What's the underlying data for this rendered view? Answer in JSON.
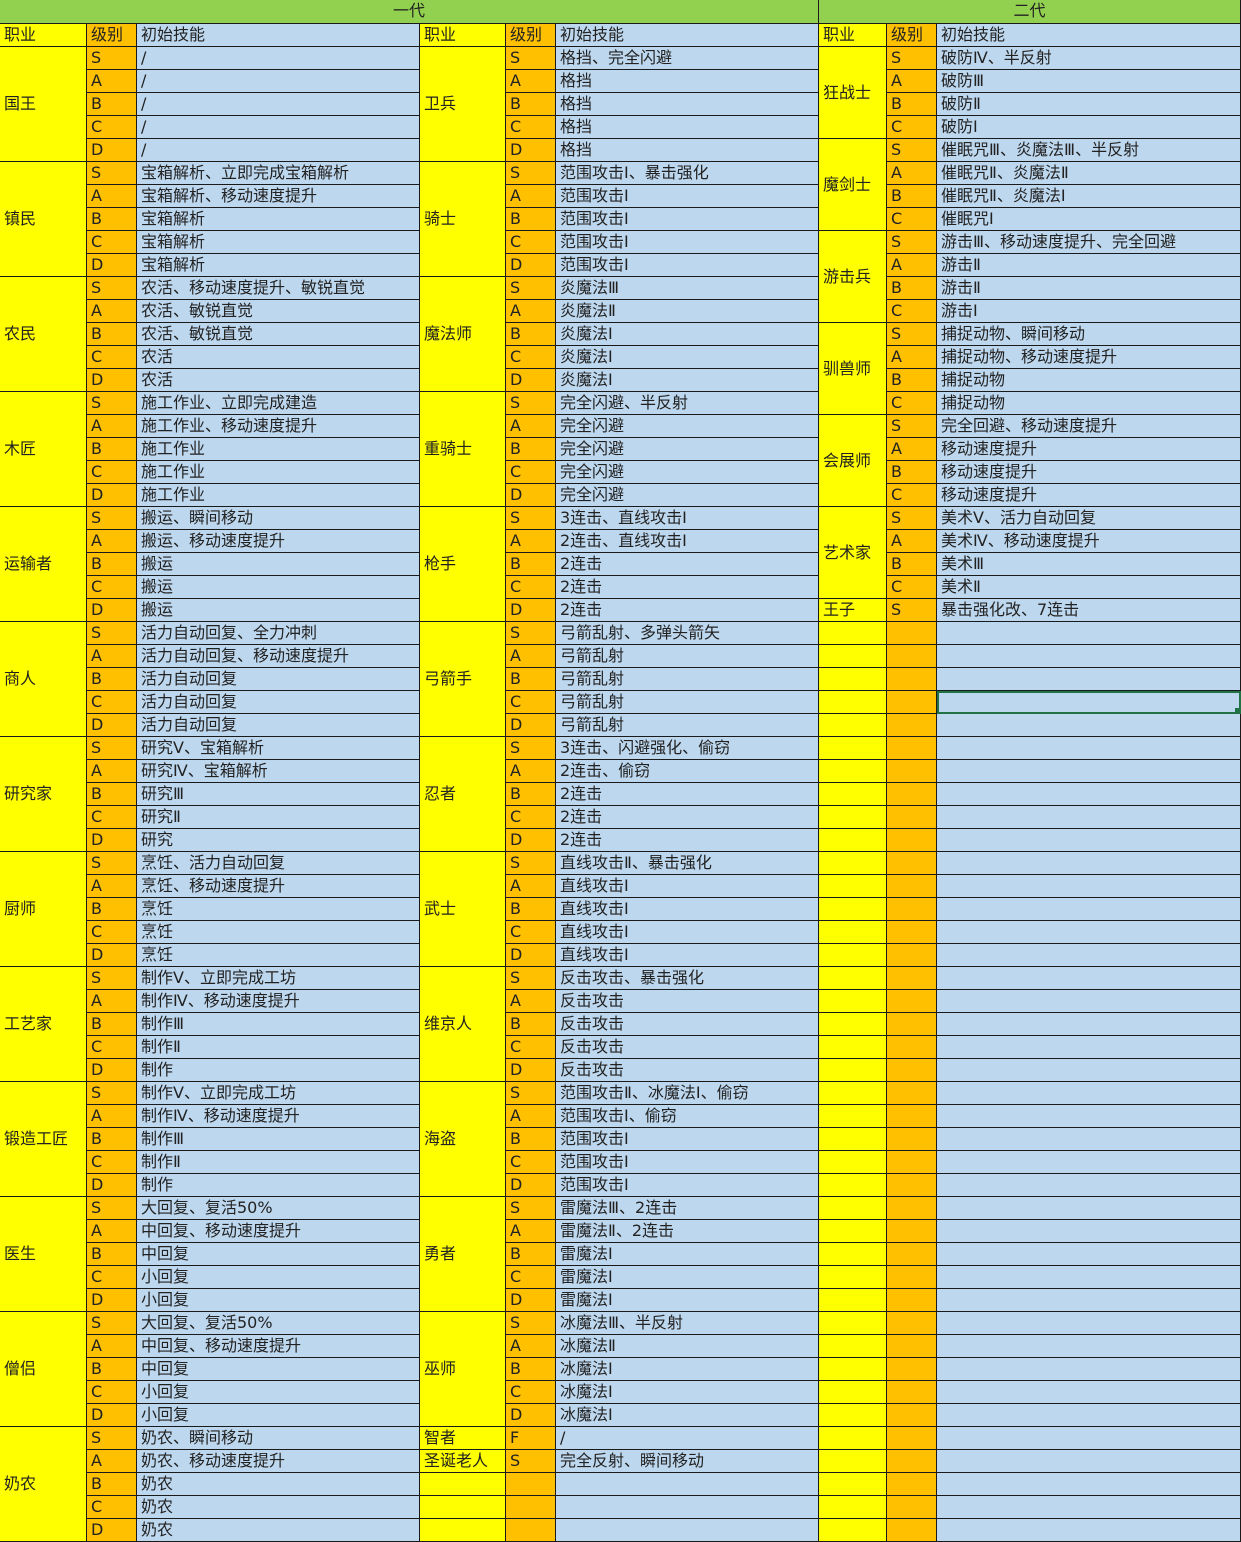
{
  "headers": {
    "gen1_title": "一代",
    "gen2_title": "二代",
    "col_class": "职业",
    "col_level": "级别",
    "col_skill": "初始技能"
  },
  "colors": {
    "title": "#92D050",
    "class": "#FFFF00",
    "level": "#FFC000",
    "skill": "#BDD7EE",
    "selection": "#217346"
  },
  "selected_cell": {
    "section": "gen2",
    "row": 29,
    "column": "初始技能"
  },
  "gen1_left": [
    {
      "name": "国王",
      "rows": [
        [
          "S",
          "/"
        ],
        [
          "A",
          "/"
        ],
        [
          "B",
          "/"
        ],
        [
          "C",
          "/"
        ],
        [
          "D",
          "/"
        ]
      ]
    },
    {
      "name": "镇民",
      "rows": [
        [
          "S",
          "宝箱解析、立即完成宝箱解析"
        ],
        [
          "A",
          "宝箱解析、移动速度提升"
        ],
        [
          "B",
          "宝箱解析"
        ],
        [
          "C",
          "宝箱解析"
        ],
        [
          "D",
          "宝箱解析"
        ]
      ]
    },
    {
      "name": "农民",
      "rows": [
        [
          "S",
          "农活、移动速度提升、敏锐直觉"
        ],
        [
          "A",
          "农活、敏锐直觉"
        ],
        [
          "B",
          "农活、敏锐直觉"
        ],
        [
          "C",
          "农活"
        ],
        [
          "D",
          "农活"
        ]
      ]
    },
    {
      "name": "木匠",
      "rows": [
        [
          "S",
          "施工作业、立即完成建造"
        ],
        [
          "A",
          "施工作业、移动速度提升"
        ],
        [
          "B",
          "施工作业"
        ],
        [
          "C",
          "施工作业"
        ],
        [
          "D",
          "施工作业"
        ]
      ]
    },
    {
      "name": "运输者",
      "rows": [
        [
          "S",
          "搬运、瞬间移动"
        ],
        [
          "A",
          "搬运、移动速度提升"
        ],
        [
          "B",
          "搬运"
        ],
        [
          "C",
          "搬运"
        ],
        [
          "D",
          "搬运"
        ]
      ]
    },
    {
      "name": "商人",
      "rows": [
        [
          "S",
          "活力自动回复、全力冲刺"
        ],
        [
          "A",
          "活力自动回复、移动速度提升"
        ],
        [
          "B",
          "活力自动回复"
        ],
        [
          "C",
          "活力自动回复"
        ],
        [
          "D",
          "活力自动回复"
        ]
      ]
    },
    {
      "name": "研究家",
      "rows": [
        [
          "S",
          "研究Ⅴ、宝箱解析"
        ],
        [
          "A",
          "研究Ⅳ、宝箱解析"
        ],
        [
          "B",
          "研究Ⅲ"
        ],
        [
          "C",
          "研究Ⅱ"
        ],
        [
          "D",
          "研究"
        ]
      ]
    },
    {
      "name": "厨师",
      "rows": [
        [
          "S",
          "烹饪、活力自动回复"
        ],
        [
          "A",
          "烹饪、移动速度提升"
        ],
        [
          "B",
          "烹饪"
        ],
        [
          "C",
          "烹饪"
        ],
        [
          "D",
          "烹饪"
        ]
      ]
    },
    {
      "name": "工艺家",
      "rows": [
        [
          "S",
          "制作Ⅴ、立即完成工坊"
        ],
        [
          "A",
          "制作Ⅳ、移动速度提升"
        ],
        [
          "B",
          "制作Ⅲ"
        ],
        [
          "C",
          "制作Ⅱ"
        ],
        [
          "D",
          "制作"
        ]
      ]
    },
    {
      "name": "锻造工匠",
      "rows": [
        [
          "S",
          "制作Ⅴ、立即完成工坊"
        ],
        [
          "A",
          "制作Ⅳ、移动速度提升"
        ],
        [
          "B",
          "制作Ⅲ"
        ],
        [
          "C",
          "制作Ⅱ"
        ],
        [
          "D",
          "制作"
        ]
      ]
    },
    {
      "name": "医生",
      "rows": [
        [
          "S",
          "大回复、复活50%"
        ],
        [
          "A",
          "中回复、移动速度提升"
        ],
        [
          "B",
          "中回复"
        ],
        [
          "C",
          "小回复"
        ],
        [
          "D",
          "小回复"
        ]
      ]
    },
    {
      "name": "僧侣",
      "rows": [
        [
          "S",
          "大回复、复活50%"
        ],
        [
          "A",
          "中回复、移动速度提升"
        ],
        [
          "B",
          "中回复"
        ],
        [
          "C",
          "小回复"
        ],
        [
          "D",
          "小回复"
        ]
      ]
    },
    {
      "name": "奶农",
      "rows": [
        [
          "S",
          "奶农、瞬间移动"
        ],
        [
          "A",
          "奶农、移动速度提升"
        ],
        [
          "B",
          "奶农"
        ],
        [
          "C",
          "奶农"
        ],
        [
          "D",
          "奶农"
        ]
      ]
    }
  ],
  "gen1_right": [
    {
      "name": "卫兵",
      "rows": [
        [
          "S",
          "格挡、完全闪避"
        ],
        [
          "A",
          "格挡"
        ],
        [
          "B",
          "格挡"
        ],
        [
          "C",
          "格挡"
        ],
        [
          "D",
          "格挡"
        ]
      ]
    },
    {
      "name": "骑士",
      "rows": [
        [
          "S",
          "范围攻击Ⅰ、暴击强化"
        ],
        [
          "A",
          "范围攻击Ⅰ"
        ],
        [
          "B",
          "范围攻击Ⅰ"
        ],
        [
          "C",
          "范围攻击Ⅰ"
        ],
        [
          "D",
          "范围攻击Ⅰ"
        ]
      ]
    },
    {
      "name": "魔法师",
      "rows": [
        [
          "S",
          "炎魔法Ⅲ"
        ],
        [
          "A",
          "炎魔法Ⅱ"
        ],
        [
          "B",
          "炎魔法Ⅰ"
        ],
        [
          "C",
          "炎魔法Ⅰ"
        ],
        [
          "D",
          "炎魔法Ⅰ"
        ]
      ]
    },
    {
      "name": "重骑士",
      "rows": [
        [
          "S",
          "完全闪避、半反射"
        ],
        [
          "A",
          "完全闪避"
        ],
        [
          "B",
          "完全闪避"
        ],
        [
          "C",
          "完全闪避"
        ],
        [
          "D",
          "完全闪避"
        ]
      ]
    },
    {
      "name": "枪手",
      "rows": [
        [
          "S",
          "3连击、直线攻击Ⅰ"
        ],
        [
          "A",
          "2连击、直线攻击Ⅰ"
        ],
        [
          "B",
          "2连击"
        ],
        [
          "C",
          "2连击"
        ],
        [
          "D",
          "2连击"
        ]
      ]
    },
    {
      "name": "弓箭手",
      "rows": [
        [
          "S",
          "弓箭乱射、多弹头箭矢"
        ],
        [
          "A",
          "弓箭乱射"
        ],
        [
          "B",
          "弓箭乱射"
        ],
        [
          "C",
          "弓箭乱射"
        ],
        [
          "D",
          "弓箭乱射"
        ]
      ]
    },
    {
      "name": "忍者",
      "rows": [
        [
          "S",
          "3连击、闪避强化、偷窃"
        ],
        [
          "A",
          "2连击、偷窃"
        ],
        [
          "B",
          "2连击"
        ],
        [
          "C",
          "2连击"
        ],
        [
          "D",
          "2连击"
        ]
      ]
    },
    {
      "name": "武士",
      "rows": [
        [
          "S",
          "直线攻击Ⅱ、暴击强化"
        ],
        [
          "A",
          "直线攻击Ⅰ"
        ],
        [
          "B",
          "直线攻击Ⅰ"
        ],
        [
          "C",
          "直线攻击Ⅰ"
        ],
        [
          "D",
          "直线攻击Ⅰ"
        ]
      ]
    },
    {
      "name": "维京人",
      "rows": [
        [
          "S",
          "反击攻击、暴击强化"
        ],
        [
          "A",
          "反击攻击"
        ],
        [
          "B",
          "反击攻击"
        ],
        [
          "C",
          "反击攻击"
        ],
        [
          "D",
          "反击攻击"
        ]
      ]
    },
    {
      "name": "海盗",
      "rows": [
        [
          "S",
          "范围攻击Ⅱ、冰魔法Ⅰ、偷窃"
        ],
        [
          "A",
          "范围攻击Ⅰ、偷窃"
        ],
        [
          "B",
          "范围攻击Ⅰ"
        ],
        [
          "C",
          "范围攻击Ⅰ"
        ],
        [
          "D",
          "范围攻击Ⅰ"
        ]
      ]
    },
    {
      "name": "勇者",
      "rows": [
        [
          "S",
          "雷魔法Ⅲ、2连击"
        ],
        [
          "A",
          "雷魔法Ⅱ、2连击"
        ],
        [
          "B",
          "雷魔法Ⅰ"
        ],
        [
          "C",
          "雷魔法Ⅰ"
        ],
        [
          "D",
          "雷魔法Ⅰ"
        ]
      ]
    },
    {
      "name": "巫师",
      "rows": [
        [
          "S",
          "冰魔法Ⅲ、半反射"
        ],
        [
          "A",
          "冰魔法Ⅱ"
        ],
        [
          "B",
          "冰魔法Ⅰ"
        ],
        [
          "C",
          "冰魔法Ⅰ"
        ],
        [
          "D",
          "冰魔法Ⅰ"
        ]
      ]
    },
    {
      "name": "智者",
      "rows": [
        [
          "F",
          "/"
        ]
      ]
    },
    {
      "name": "圣诞老人",
      "rows": [
        [
          "S",
          "完全反射、瞬间移动"
        ]
      ]
    }
  ],
  "gen2": [
    {
      "name": "狂战士",
      "rows": [
        [
          "S",
          "破防Ⅳ、半反射"
        ],
        [
          "A",
          "破防Ⅲ"
        ],
        [
          "B",
          "破防Ⅱ"
        ],
        [
          "C",
          "破防Ⅰ"
        ]
      ]
    },
    {
      "name": "魔剑士",
      "rows": [
        [
          "S",
          "催眠咒Ⅲ、炎魔法Ⅲ、半反射"
        ],
        [
          "A",
          "催眠咒Ⅱ、炎魔法Ⅱ"
        ],
        [
          "B",
          "催眠咒Ⅱ、炎魔法Ⅰ"
        ],
        [
          "C",
          "催眠咒Ⅰ"
        ]
      ]
    },
    {
      "name": "游击兵",
      "rows": [
        [
          "S",
          "游击Ⅲ、移动速度提升、完全回避"
        ],
        [
          "A",
          "游击Ⅱ"
        ],
        [
          "B",
          "游击Ⅱ"
        ],
        [
          "C",
          "游击Ⅰ"
        ]
      ]
    },
    {
      "name": "驯兽师",
      "rows": [
        [
          "S",
          "捕捉动物、瞬间移动"
        ],
        [
          "A",
          "捕捉动物、移动速度提升"
        ],
        [
          "B",
          "捕捉动物"
        ],
        [
          "C",
          "捕捉动物"
        ]
      ]
    },
    {
      "name": "会展师",
      "rows": [
        [
          "S",
          "完全回避、移动速度提升"
        ],
        [
          "A",
          "移动速度提升"
        ],
        [
          "B",
          "移动速度提升"
        ],
        [
          "C",
          "移动速度提升"
        ]
      ]
    },
    {
      "name": "艺术家",
      "rows": [
        [
          "S",
          "美术Ⅴ、活力自动回复"
        ],
        [
          "A",
          "美术Ⅳ、移动速度提升"
        ],
        [
          "B",
          "美术Ⅲ"
        ],
        [
          "C",
          "美术Ⅱ"
        ]
      ]
    },
    {
      "name": "王子",
      "rows": [
        [
          "S",
          "暴击强化改、7连击"
        ]
      ]
    }
  ]
}
